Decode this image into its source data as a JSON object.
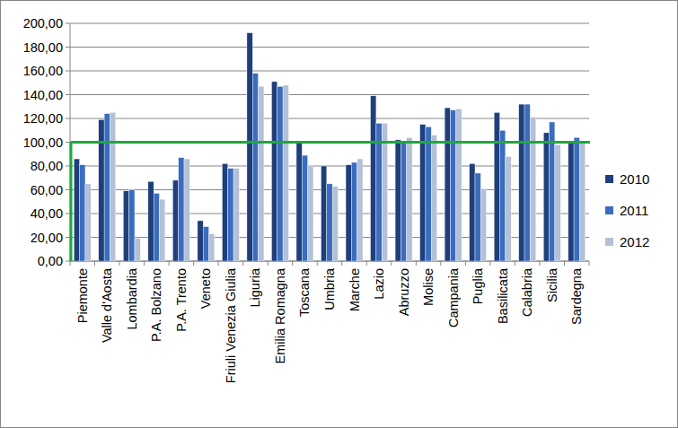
{
  "chart_data": {
    "type": "bar",
    "categories": [
      "Piemonte",
      "Valle d'Aosta",
      "Lombardia",
      "P.A. Bolzano",
      "P.A. Trento",
      "Veneto",
      "Friuli Venezia Giulia",
      "Liguria",
      "Emilia Romagna",
      "Toscana",
      "Umbria",
      "Marche",
      "Lazio",
      "Abruzzo",
      "Molise",
      "Campania",
      "Puglia",
      "Basilicata",
      "Calabria",
      "Sicilia",
      "Sardegna"
    ],
    "series": [
      {
        "name": "2010",
        "color": "#1f3f7c",
        "values": [
          86,
          119,
          59,
          67,
          68,
          34,
          82,
          192,
          151,
          100,
          80,
          81,
          139,
          102,
          115,
          129,
          82,
          125,
          132,
          108,
          101
        ]
      },
      {
        "name": "2011",
        "color": "#3a6cc0",
        "values": [
          81,
          124,
          60,
          57,
          87,
          29,
          78,
          158,
          147,
          89,
          65,
          83,
          116,
          101,
          113,
          127,
          74,
          110,
          132,
          117,
          104
        ]
      },
      {
        "name": "2012",
        "color": "#b4c0d6",
        "values": [
          65,
          125,
          19,
          52,
          86,
          23,
          78,
          147,
          148,
          80,
          63,
          86,
          116,
          104,
          106,
          128,
          61,
          88,
          121,
          98,
          101
        ]
      }
    ],
    "threshold": 100,
    "ylim": [
      0,
      200
    ],
    "yticks": [
      {
        "value": 0,
        "label": "0,00"
      },
      {
        "value": 20,
        "label": "20,00"
      },
      {
        "value": 40,
        "label": "40,00"
      },
      {
        "value": 60,
        "label": "60,00"
      },
      {
        "value": 80,
        "label": "80,00"
      },
      {
        "value": 100,
        "label": "100,00"
      },
      {
        "value": 120,
        "label": "120,00"
      },
      {
        "value": 140,
        "label": "140,00"
      },
      {
        "value": 160,
        "label": "160,00"
      },
      {
        "value": 180,
        "label": "180,00"
      },
      {
        "value": 200,
        "label": "200,00"
      }
    ],
    "grid": true,
    "legend": "right"
  }
}
